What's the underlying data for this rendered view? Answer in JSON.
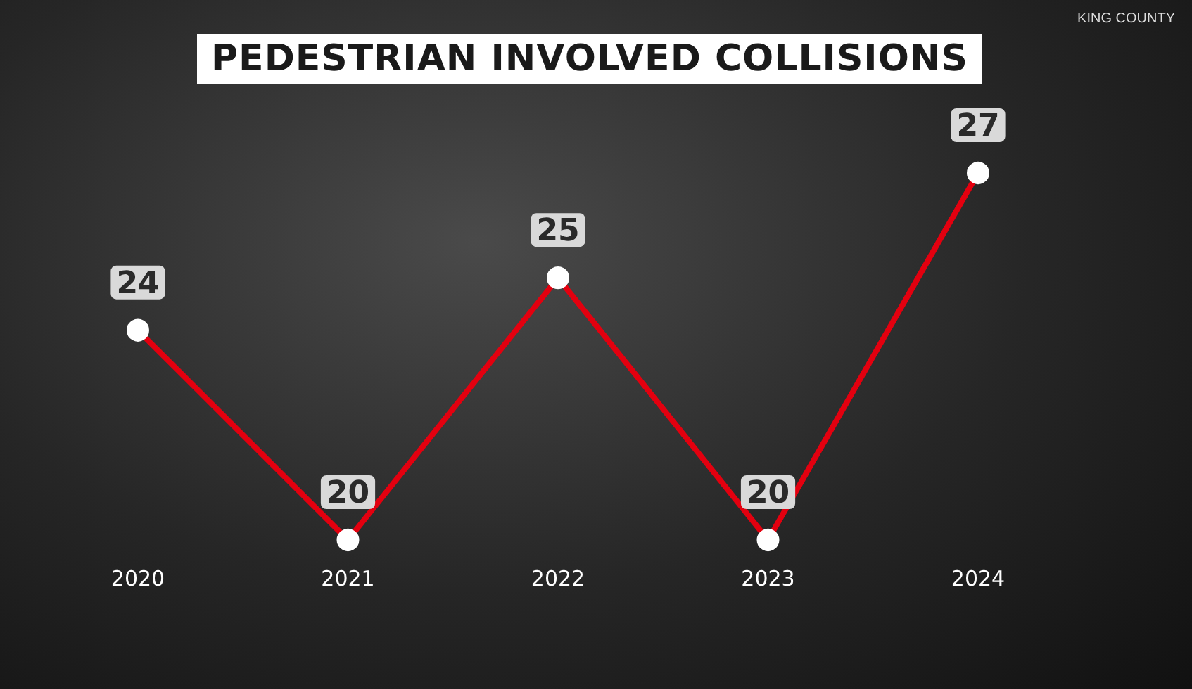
{
  "chart_data": {
    "type": "line",
    "title": "PEDESTRIAN INVOLVED COLLISIONS",
    "annotations": [
      "KING COUNTY"
    ],
    "categories": [
      "2020",
      "2021",
      "2022",
      "2023",
      "2024"
    ],
    "values": [
      24,
      20,
      25,
      20,
      27
    ],
    "color": "#e3000f",
    "marker": "circle",
    "line_style": "solid",
    "data_labels": true
  }
}
